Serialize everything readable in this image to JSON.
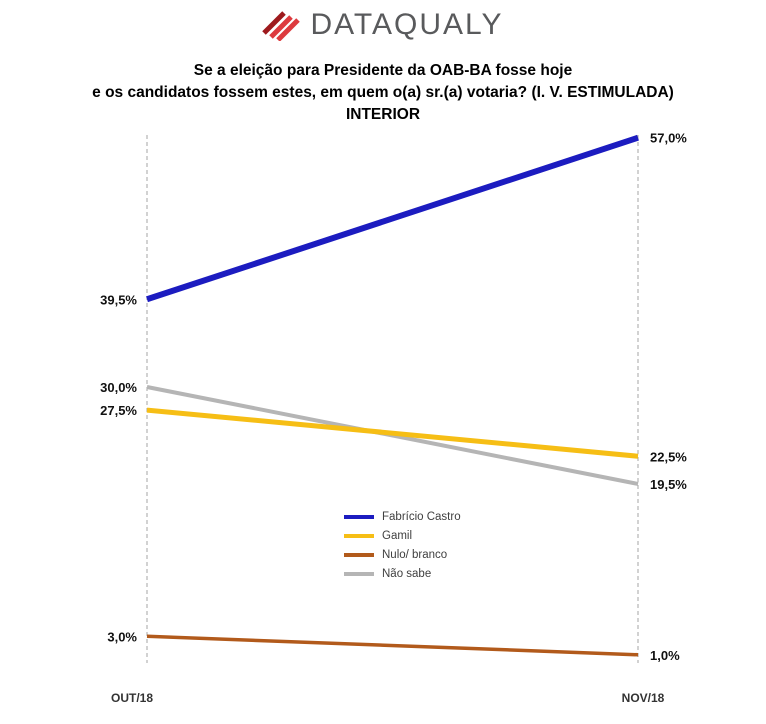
{
  "logo": {
    "text": "DATAQUALY",
    "accent_dark": "#9E1A1D",
    "accent": "#DD3A3E",
    "text_color": "#595A5C"
  },
  "title": {
    "line1": "Se a eleição para Presidente da OAB-BA fosse hoje",
    "line2": "e os candidatos fossem estes, em quem o(a) sr.(a) votaria? (I. V. ESTIMULADA)",
    "line3": "INTERIOR"
  },
  "chart_data": {
    "type": "line",
    "title": "Se a eleição para Presidente da OAB-BA fosse hoje e os candidatos fossem estes, em quem o(a) sr.(a) votaria? (I. V. ESTIMULADA) INTERIOR",
    "categories": [
      "OUT/18",
      "NOV/18"
    ],
    "series": [
      {
        "name": "Fabrício Castro",
        "values": [
          39.5,
          57.0
        ],
        "labels": [
          "39,5%",
          "57,0%"
        ],
        "color": "#1C1CC0",
        "stroke_width": 6
      },
      {
        "name": "Gamil",
        "values": [
          27.5,
          22.5
        ],
        "labels": [
          "27,5%",
          "22,5%"
        ],
        "color": "#F6BE15",
        "stroke_width": 5
      },
      {
        "name": "Nulo/ branco",
        "values": [
          3.0,
          1.0
        ],
        "labels": [
          "3,0%",
          "1,0%"
        ],
        "color": "#B25A1B",
        "stroke_width": 3.5
      },
      {
        "name": "Não sabe",
        "values": [
          30.0,
          19.5
        ],
        "labels": [
          "30,0%",
          "19,5%"
        ],
        "color": "#B5B5B5",
        "stroke_width": 4
      }
    ],
    "ylim": [
      0,
      60
    ],
    "grid": "vertical-dashed-at-categories",
    "legend_position": "center"
  }
}
